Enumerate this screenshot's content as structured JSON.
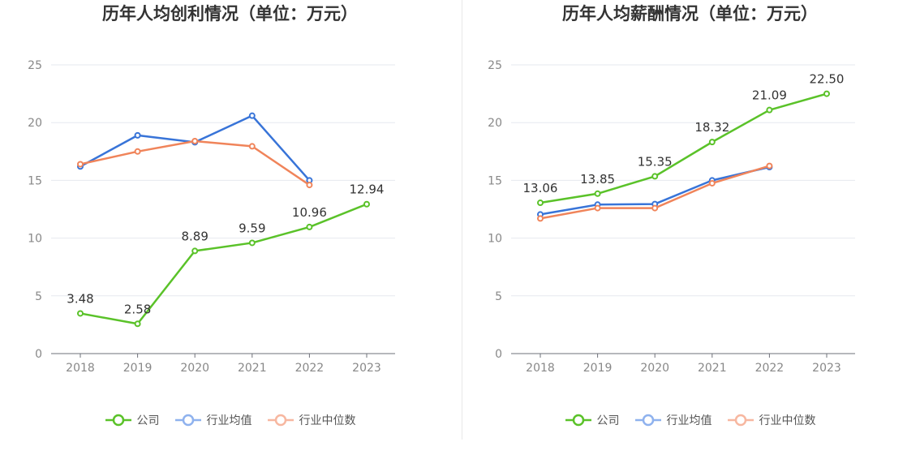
{
  "chart_data": [
    {
      "type": "line",
      "title": "历年人均创利情况（单位：万元）",
      "categories": [
        "2018",
        "2019",
        "2020",
        "2021",
        "2022",
        "2023"
      ],
      "ylim": [
        0,
        25
      ],
      "yticks": [
        "0",
        "5",
        "10",
        "15",
        "20",
        "25"
      ],
      "grid": true,
      "legend_position": "bottom",
      "series": [
        {
          "name": "公司",
          "color": "#5ac229",
          "values": [
            3.48,
            2.58,
            8.89,
            9.59,
            10.96,
            12.94
          ],
          "labels": [
            "3.48",
            "2.58",
            "8.89",
            "9.59",
            "10.96",
            "12.94"
          ]
        },
        {
          "name": "行业均值",
          "color": "#3874d8",
          "values": [
            16.2,
            18.9,
            18.3,
            20.6,
            15.0,
            null
          ]
        },
        {
          "name": "行业中位数",
          "color": "#f0845a",
          "values": [
            16.4,
            17.5,
            18.4,
            17.95,
            14.6,
            null
          ]
        }
      ]
    },
    {
      "type": "line",
      "title": "历年人均薪酬情况（单位：万元）",
      "categories": [
        "2018",
        "2019",
        "2020",
        "2021",
        "2022",
        "2023"
      ],
      "ylim": [
        0,
        25
      ],
      "yticks": [
        "0",
        "5",
        "10",
        "15",
        "20",
        "25"
      ],
      "grid": true,
      "legend_position": "bottom",
      "series": [
        {
          "name": "公司",
          "color": "#5ac229",
          "values": [
            13.06,
            13.85,
            15.35,
            18.32,
            21.09,
            22.5
          ],
          "labels": [
            "13.06",
            "13.85",
            "15.35",
            "18.32",
            "21.09",
            "22.50"
          ]
        },
        {
          "name": "行业均值",
          "color": "#3874d8",
          "values": [
            12.05,
            12.9,
            12.95,
            15.0,
            16.15,
            null
          ]
        },
        {
          "name": "行业中位数",
          "color": "#f0845a",
          "values": [
            11.7,
            12.6,
            12.6,
            14.75,
            16.25,
            null
          ]
        }
      ]
    }
  ],
  "legend": {
    "items": [
      {
        "label": "公司",
        "color": "#5ac229"
      },
      {
        "label": "行业均值",
        "color": "#8fb2ee"
      },
      {
        "label": "行业中位数",
        "color": "#f7b7a0"
      }
    ]
  }
}
